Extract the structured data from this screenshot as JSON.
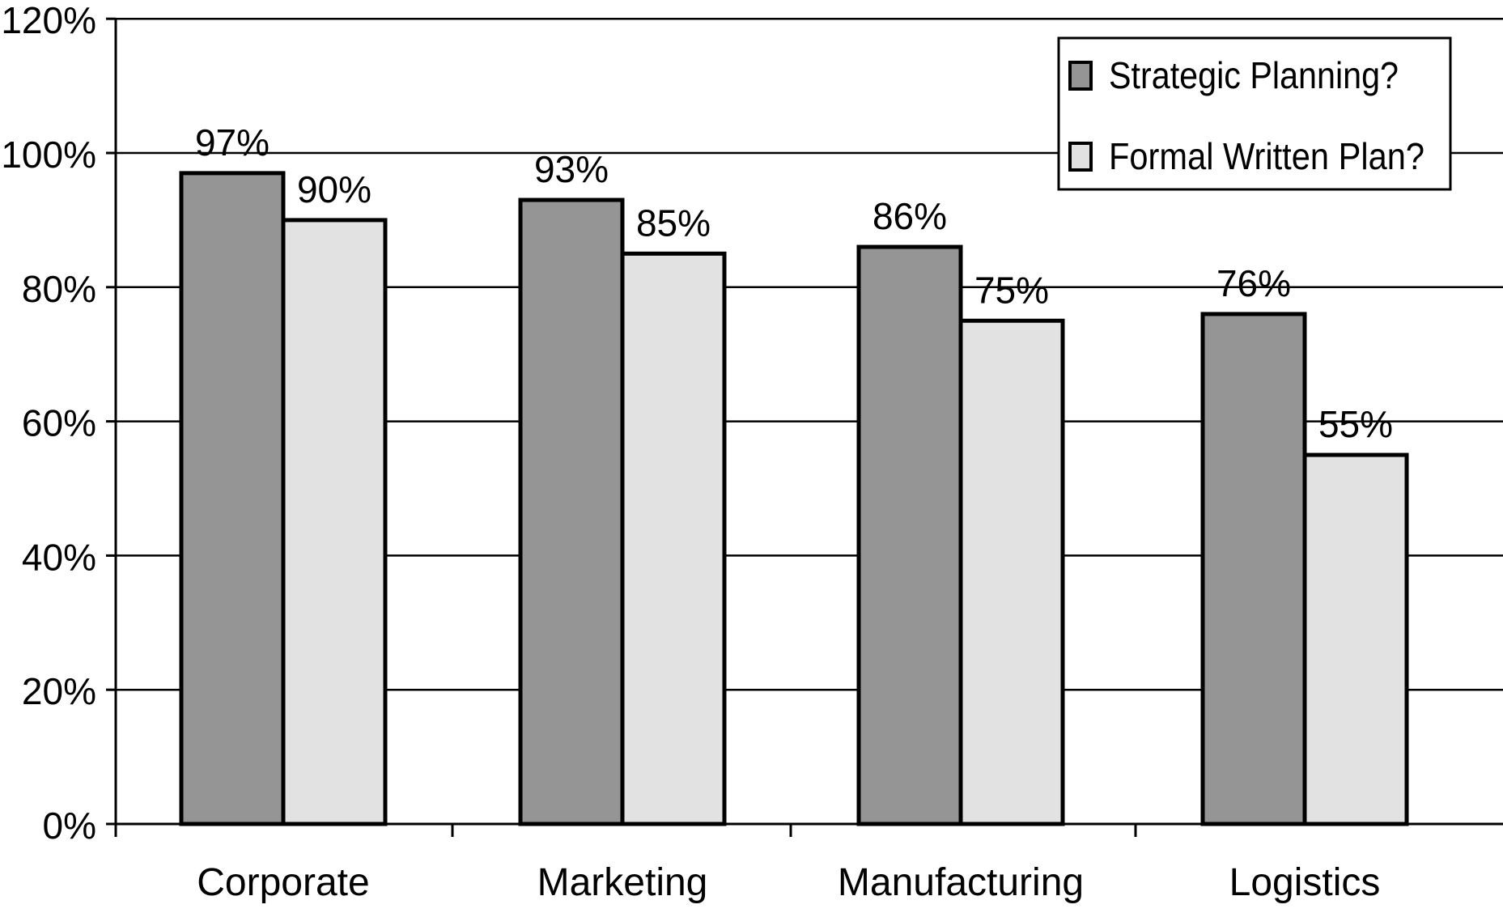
{
  "chart_data": {
    "type": "bar",
    "title": "",
    "xlabel": "",
    "ylabel": "",
    "categories": [
      "Corporate",
      "Marketing",
      "Manufacturing",
      "Logistics"
    ],
    "series": [
      {
        "name": "Strategic Planning?",
        "values": [
          97,
          93,
          86,
          76
        ],
        "labels": [
          "97%",
          "93%",
          "86%",
          "76%"
        ],
        "color": "#959595"
      },
      {
        "name": "Formal Written Plan?",
        "values": [
          90,
          85,
          75,
          55
        ],
        "labels": [
          "90%",
          "85%",
          "75%",
          "55%"
        ],
        "color": "#e2e2e2"
      }
    ],
    "ylim": [
      0,
      120
    ],
    "y_ticks": [
      0,
      20,
      40,
      60,
      80,
      100,
      120
    ],
    "y_tick_labels": [
      "0%",
      "20%",
      "40%",
      "60%",
      "80%",
      "100%",
      "120%"
    ],
    "grid": true,
    "legend_position": "top-right"
  }
}
